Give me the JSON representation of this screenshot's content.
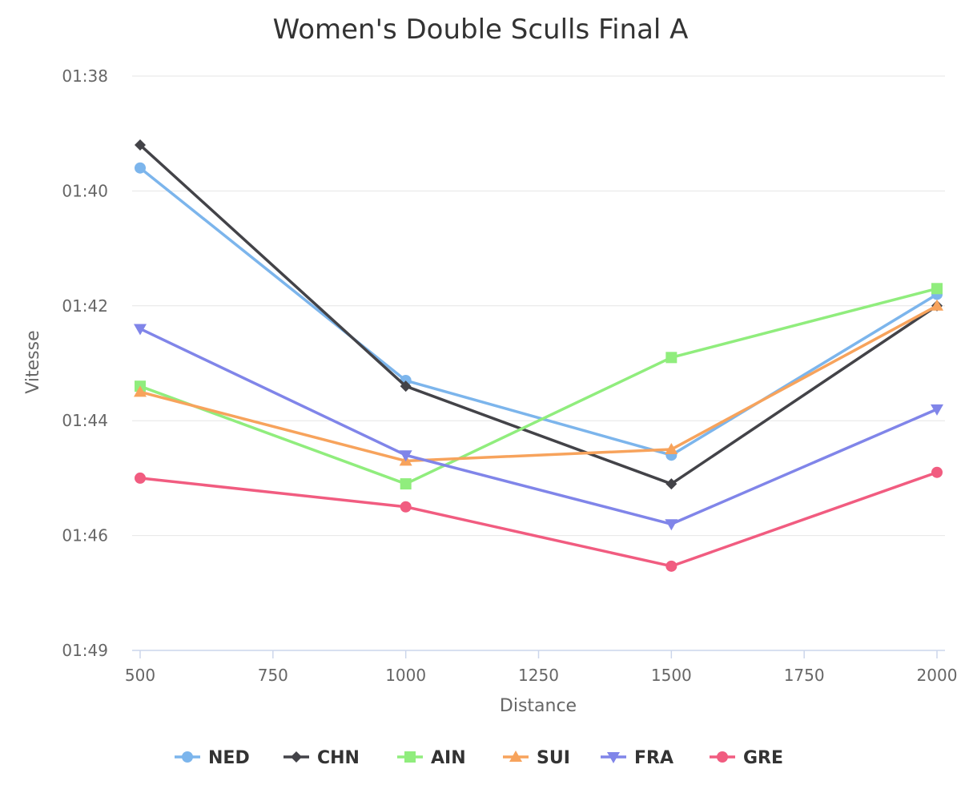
{
  "chart_data": {
    "type": "line",
    "title": "Women's Double Sculls Final A",
    "xlabel": "Distance",
    "ylabel": "Vitesse",
    "x": [
      500,
      1000,
      1500,
      2000
    ],
    "xlim": [
      500,
      2000
    ],
    "xticks": [
      500,
      750,
      1000,
      1250,
      1500,
      1750,
      2000
    ],
    "xtick_labels": [
      "500",
      "750",
      "1000",
      "1250",
      "1500",
      "1750",
      "2000"
    ],
    "ylim_seconds": [
      98,
      109
    ],
    "y_reversed": true,
    "yticks_seconds": [
      98,
      100,
      102,
      104,
      106,
      109
    ],
    "ytick_labels": [
      "01:38",
      "01:40",
      "01:42",
      "01:44",
      "01:46",
      "01:49"
    ],
    "y_unit": "seconds per 500m (mm:ss)",
    "grid": true,
    "legend_position": "bottom-center",
    "series": [
      {
        "name": "NED",
        "color": "#7cb5ec",
        "marker": "circle",
        "values": [
          99.6,
          103.3,
          104.6,
          101.8
        ]
      },
      {
        "name": "CHN",
        "color": "#434348",
        "marker": "diamond",
        "values": [
          99.2,
          103.4,
          105.1,
          102.0
        ]
      },
      {
        "name": "AIN",
        "color": "#90ed7d",
        "marker": "square",
        "values": [
          103.4,
          105.1,
          102.9,
          101.7
        ]
      },
      {
        "name": "SUI",
        "color": "#f7a35c",
        "marker": "triangle",
        "values": [
          103.5,
          104.7,
          104.5,
          102.0
        ]
      },
      {
        "name": "FRA",
        "color": "#8085e9",
        "marker": "triangle-down",
        "values": [
          102.4,
          104.6,
          105.8,
          103.8
        ]
      },
      {
        "name": "GRE",
        "color": "#f15c80",
        "marker": "circle",
        "values": [
          105.0,
          105.5,
          106.8,
          104.9
        ]
      }
    ]
  }
}
